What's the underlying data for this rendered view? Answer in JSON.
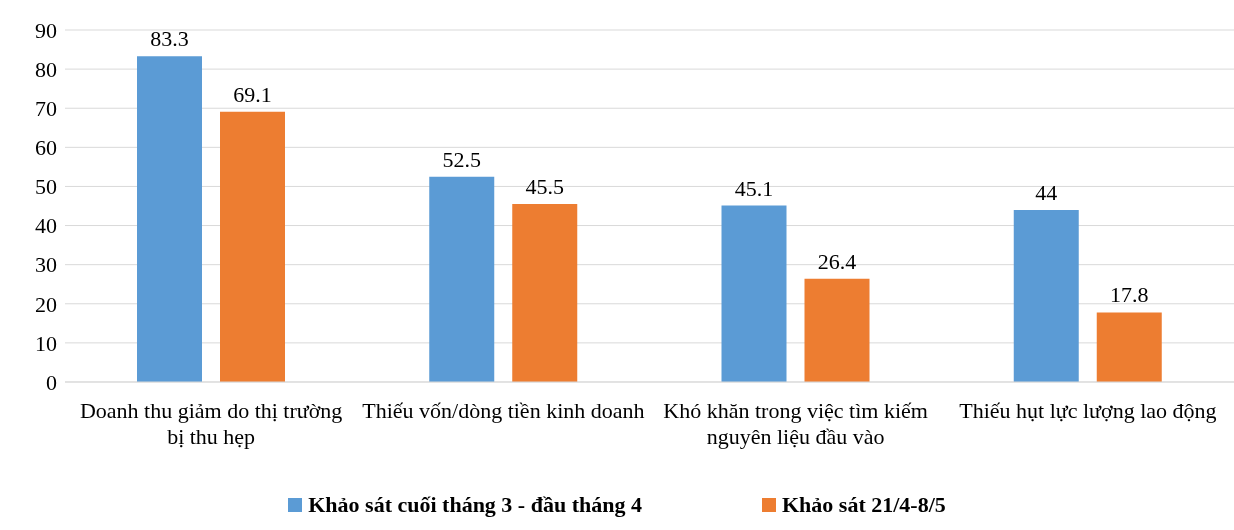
{
  "chart_data": {
    "type": "bar",
    "categories": [
      "Doanh thu giảm do thị trường bị thu hẹp",
      "Thiếu vốn/dòng tiền kinh doanh",
      "Khó khăn trong việc tìm kiếm nguyên liệu đầu vào",
      "Thiếu hụt lực lượng lao động"
    ],
    "series": [
      {
        "name": "Khảo sát cuối tháng 3 - đầu tháng 4",
        "color": "#5b9bd5",
        "values": [
          83.3,
          52.5,
          45.1,
          44
        ]
      },
      {
        "name": "Khảo sát 21/4-8/5",
        "color": "#ed7d31",
        "values": [
          69.1,
          45.5,
          26.4,
          17.8
        ]
      }
    ],
    "ylim": [
      0,
      90
    ],
    "yticks": [
      0,
      10,
      20,
      30,
      40,
      50,
      60,
      70,
      80,
      90
    ],
    "grid": "y",
    "legend": "bottom",
    "data_labels": true
  }
}
